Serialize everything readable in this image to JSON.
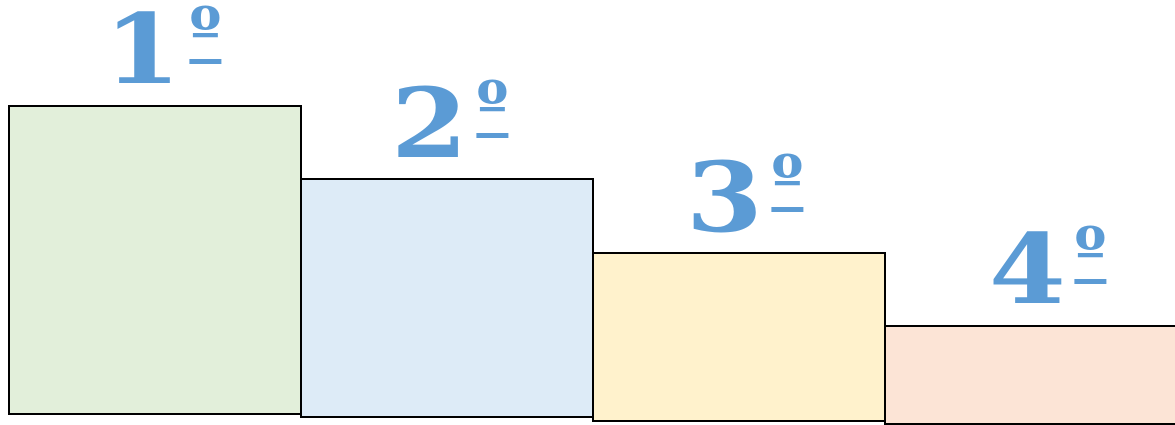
{
  "podium": {
    "places": [
      {
        "number": "1",
        "ordinal": "º",
        "fill": "#e2efda"
      },
      {
        "number": "2",
        "ordinal": "º",
        "fill": "#ddebf7"
      },
      {
        "number": "3",
        "ordinal": "º",
        "fill": "#fff2cc"
      },
      {
        "number": "4",
        "ordinal": "º",
        "fill": "#fce4d6"
      }
    ],
    "label_color": "#5b9bd5",
    "border_color": "#000000"
  }
}
